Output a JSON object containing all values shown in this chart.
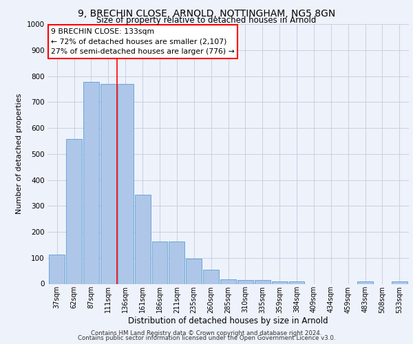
{
  "title_line1": "9, BRECHIN CLOSE, ARNOLD, NOTTINGHAM, NG5 8GN",
  "title_line2": "Size of property relative to detached houses in Arnold",
  "xlabel": "Distribution of detached houses by size in Arnold",
  "ylabel": "Number of detached properties",
  "categories": [
    "37sqm",
    "62sqm",
    "87sqm",
    "111sqm",
    "136sqm",
    "161sqm",
    "186sqm",
    "211sqm",
    "235sqm",
    "260sqm",
    "285sqm",
    "310sqm",
    "335sqm",
    "359sqm",
    "384sqm",
    "409sqm",
    "434sqm",
    "459sqm",
    "483sqm",
    "508sqm",
    "533sqm"
  ],
  "values": [
    112,
    557,
    777,
    770,
    770,
    343,
    163,
    163,
    97,
    53,
    18,
    14,
    14,
    10,
    10,
    0,
    0,
    0,
    8,
    0,
    8
  ],
  "bar_color": "#aec6e8",
  "bar_edge_color": "#5a9fd4",
  "vline_x_index": 3.5,
  "vline_color": "red",
  "annotation_text": "9 BRECHIN CLOSE: 133sqm\n← 72% of detached houses are smaller (2,107)\n27% of semi-detached houses are larger (776) →",
  "annotation_box_color": "white",
  "annotation_box_edge_color": "red",
  "ylim": [
    0,
    1000
  ],
  "yticks": [
    0,
    100,
    200,
    300,
    400,
    500,
    600,
    700,
    800,
    900,
    1000
  ],
  "footer_line1": "Contains HM Land Registry data © Crown copyright and database right 2024.",
  "footer_line2": "Contains public sector information licensed under the Open Government Licence v3.0.",
  "bg_color": "#eef2fb",
  "grid_color": "#c8cfe0"
}
